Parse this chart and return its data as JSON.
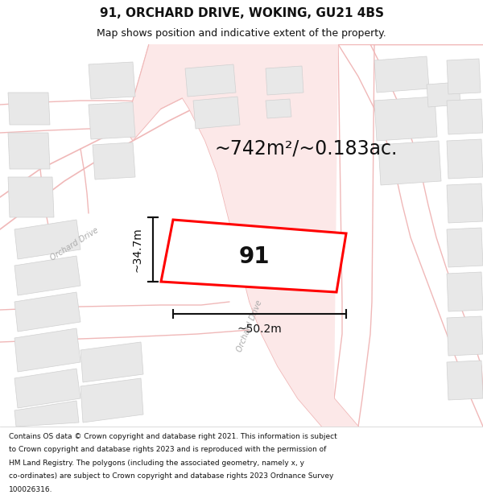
{
  "title": "91, ORCHARD DRIVE, WOKING, GU21 4BS",
  "subtitle": "Map shows position and indicative extent of the property.",
  "area_label": "~742m²/~0.183ac.",
  "label_91": "91",
  "dim_height": "~34.7m",
  "dim_width": "~50.2m",
  "street_label_diag": "Orchard Drive",
  "street_label_left": "Orchard Drive",
  "footer": "Contains OS data © Crown copyright and database right 2021. This information is subject to Crown copyright and database rights 2023 and is reproduced with the permission of HM Land Registry. The polygons (including the associated geometry, namely x, y co-ordinates) are subject to Crown copyright and database rights 2023 Ordnance Survey 100026316.",
  "title_fontsize": 11,
  "subtitle_fontsize": 9,
  "area_fontsize": 17,
  "label_fontsize": 20,
  "dim_fontsize": 10,
  "footer_fontsize": 6.5,
  "road_line_color": "#f0b8b8",
  "road_fill_color": "#fce8e8",
  "building_fill": "#e8e8e8",
  "building_edge": "#d0d0d0",
  "property_color": "#ff0000",
  "arrow_color": "#111111",
  "map_bg": "#ffffff",
  "title_bg": "#ffffff",
  "footer_bg": "#ffffff"
}
